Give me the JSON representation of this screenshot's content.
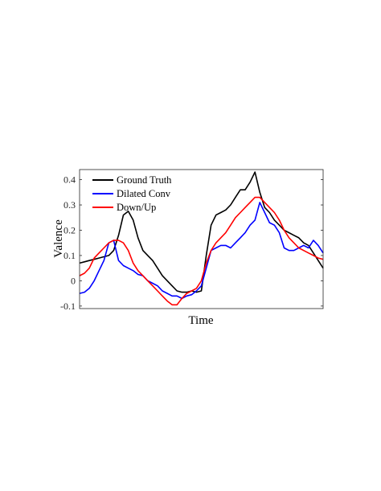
{
  "chart_data": {
    "type": "line",
    "xlabel": "Time",
    "ylabel": "Valence",
    "xlim": [
      0,
      100
    ],
    "ylim": [
      -0.11,
      0.44
    ],
    "yticks": [
      -0.1,
      0,
      0.1,
      0.2,
      0.3,
      0.4
    ],
    "ytick_labels": [
      "-0.1",
      "0",
      "0.1",
      "0.2",
      "0.3",
      "0.4"
    ],
    "grid": false,
    "legend_position": "top-left",
    "series": [
      {
        "name": "Ground Truth",
        "color": "#000000",
        "x": [
          0,
          2,
          4,
          6,
          8,
          10,
          12,
          14,
          16,
          18,
          20,
          22,
          24,
          26,
          28,
          30,
          32,
          34,
          36,
          38,
          40,
          42,
          44,
          46,
          48,
          50,
          52,
          54,
          56,
          58,
          60,
          62,
          64,
          66,
          68,
          70,
          72,
          74,
          76,
          78,
          80,
          82,
          84,
          86,
          88,
          90,
          92,
          94,
          96,
          98,
          100
        ],
        "values": [
          0.07,
          0.075,
          0.08,
          0.085,
          0.09,
          0.095,
          0.1,
          0.12,
          0.18,
          0.26,
          0.275,
          0.24,
          0.17,
          0.12,
          0.1,
          0.08,
          0.05,
          0.02,
          0.0,
          -0.02,
          -0.04,
          -0.045,
          -0.045,
          -0.04,
          -0.045,
          -0.04,
          0.1,
          0.22,
          0.26,
          0.27,
          0.28,
          0.3,
          0.33,
          0.36,
          0.36,
          0.39,
          0.43,
          0.35,
          0.29,
          0.27,
          0.24,
          0.22,
          0.2,
          0.19,
          0.18,
          0.17,
          0.15,
          0.14,
          0.11,
          0.08,
          0.05
        ]
      },
      {
        "name": "Dilated Conv",
        "color": "#0000ff",
        "x": [
          0,
          2,
          4,
          6,
          8,
          10,
          12,
          14,
          16,
          18,
          20,
          22,
          24,
          26,
          28,
          30,
          32,
          34,
          36,
          38,
          40,
          42,
          44,
          46,
          48,
          50,
          52,
          54,
          56,
          58,
          60,
          62,
          64,
          66,
          68,
          70,
          72,
          74,
          76,
          78,
          80,
          82,
          84,
          86,
          88,
          90,
          92,
          94,
          96,
          98,
          100
        ],
        "values": [
          -0.05,
          -0.045,
          -0.03,
          0.0,
          0.04,
          0.08,
          0.15,
          0.16,
          0.08,
          0.06,
          0.05,
          0.04,
          0.025,
          0.02,
          0.0,
          -0.01,
          -0.02,
          -0.04,
          -0.05,
          -0.06,
          -0.06,
          -0.07,
          -0.06,
          -0.055,
          -0.04,
          -0.02,
          0.05,
          0.12,
          0.13,
          0.14,
          0.14,
          0.13,
          0.15,
          0.17,
          0.19,
          0.22,
          0.24,
          0.31,
          0.27,
          0.23,
          0.22,
          0.19,
          0.13,
          0.12,
          0.12,
          0.13,
          0.14,
          0.13,
          0.16,
          0.14,
          0.11
        ]
      },
      {
        "name": "Down/Up",
        "color": "#ff0000",
        "x": [
          0,
          2,
          4,
          6,
          8,
          10,
          12,
          14,
          16,
          18,
          20,
          22,
          24,
          26,
          28,
          30,
          32,
          34,
          36,
          38,
          40,
          42,
          44,
          46,
          48,
          50,
          52,
          54,
          56,
          58,
          60,
          62,
          64,
          66,
          68,
          70,
          72,
          74,
          76,
          78,
          80,
          82,
          84,
          86,
          88,
          90,
          92,
          94,
          96,
          98,
          100
        ],
        "values": [
          0.02,
          0.03,
          0.05,
          0.09,
          0.11,
          0.13,
          0.15,
          0.16,
          0.16,
          0.15,
          0.12,
          0.07,
          0.04,
          0.02,
          0.0,
          -0.02,
          -0.04,
          -0.06,
          -0.08,
          -0.095,
          -0.095,
          -0.07,
          -0.05,
          -0.04,
          -0.03,
          0.0,
          0.07,
          0.12,
          0.15,
          0.17,
          0.19,
          0.22,
          0.25,
          0.27,
          0.29,
          0.31,
          0.33,
          0.33,
          0.31,
          0.29,
          0.27,
          0.24,
          0.2,
          0.17,
          0.15,
          0.13,
          0.12,
          0.11,
          0.1,
          0.09,
          0.085
        ]
      }
    ]
  }
}
